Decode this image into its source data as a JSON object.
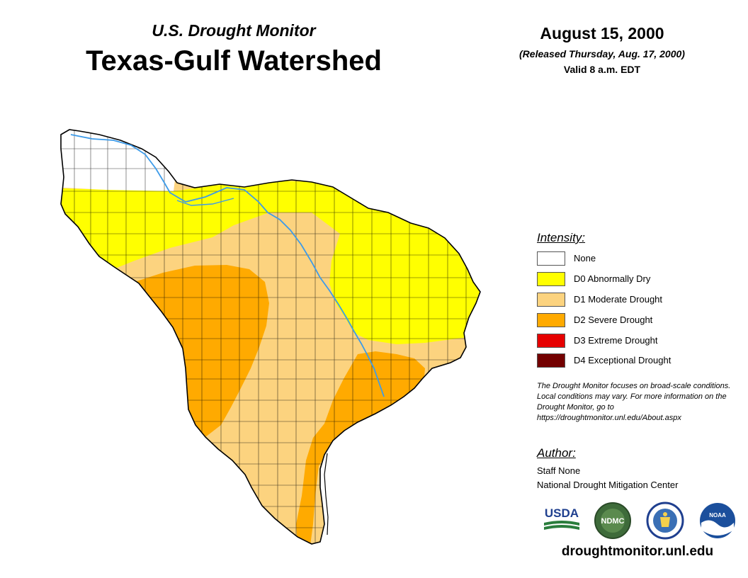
{
  "header": {
    "subtitle": "U.S. Drought Monitor",
    "title": "Texas-Gulf Watershed",
    "date": "August 15, 2000",
    "released": "(Released Thursday, Aug. 17, 2000)",
    "valid": "Valid 8 a.m. EDT"
  },
  "map": {
    "region": "Texas-Gulf Watershed",
    "icons": [
      "river-line",
      "county-boundaries"
    ],
    "colors": {
      "none": "#ffffff",
      "d0": "#ffff00",
      "d1": "#fcd37f",
      "d2": "#ffaa00",
      "d3": "#e60000",
      "d4": "#730000",
      "river": "#3d9be9",
      "boundary": "#000000"
    }
  },
  "legend": {
    "heading": "Intensity:",
    "items": [
      {
        "label": "None",
        "color": "#ffffff"
      },
      {
        "label": "D0 Abnormally Dry",
        "color": "#ffff00"
      },
      {
        "label": "D1 Moderate Drought",
        "color": "#fcd37f"
      },
      {
        "label": "D2 Severe Drought",
        "color": "#ffaa00"
      },
      {
        "label": "D3 Extreme Drought",
        "color": "#e60000"
      },
      {
        "label": "D4 Exceptional Drought",
        "color": "#730000"
      }
    ]
  },
  "note": "The Drought Monitor focuses on broad-scale conditions. Local conditions may vary. For more information on the Drought Monitor, go to https://droughtmonitor.unl.edu/About.aspx",
  "author": {
    "heading": "Author:",
    "name": "Staff None",
    "org": "National Drought Mitigation Center"
  },
  "logos": {
    "usda": "USDA",
    "ndmc": "NDMC",
    "noaa": "NOAA"
  },
  "website": "droughtmonitor.unl.edu"
}
